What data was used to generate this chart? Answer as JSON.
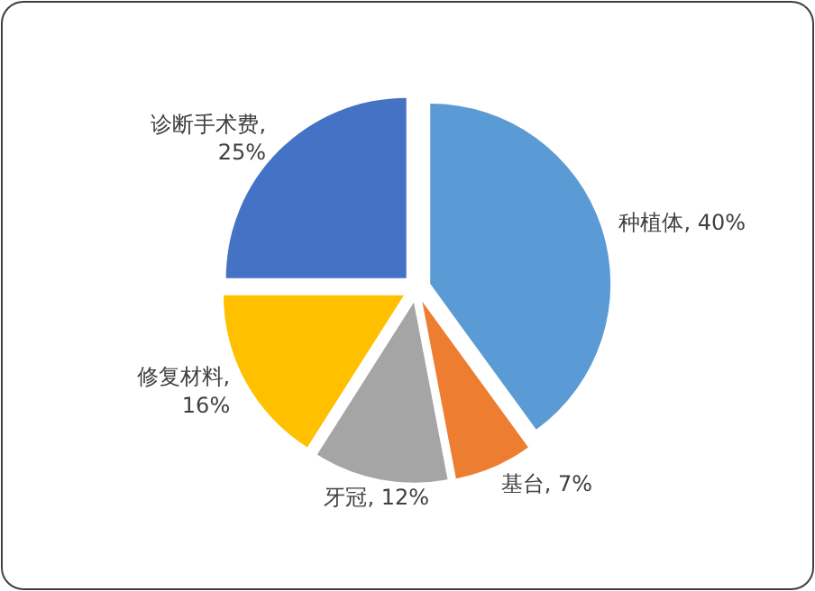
{
  "chart_data": {
    "type": "pie",
    "categories": [
      "种植体",
      "基台",
      "牙冠",
      "修复材料",
      "诊断手术费"
    ],
    "values": [
      40,
      7,
      12,
      16,
      25
    ],
    "colors": [
      "#5b9bd5",
      "#ed7d31",
      "#a5a5a5",
      "#ffc000",
      "#4472c4"
    ],
    "value_labels": [
      ", 40%",
      ", 7%",
      ", 12%",
      ", 16%",
      ", 25%"
    ]
  }
}
